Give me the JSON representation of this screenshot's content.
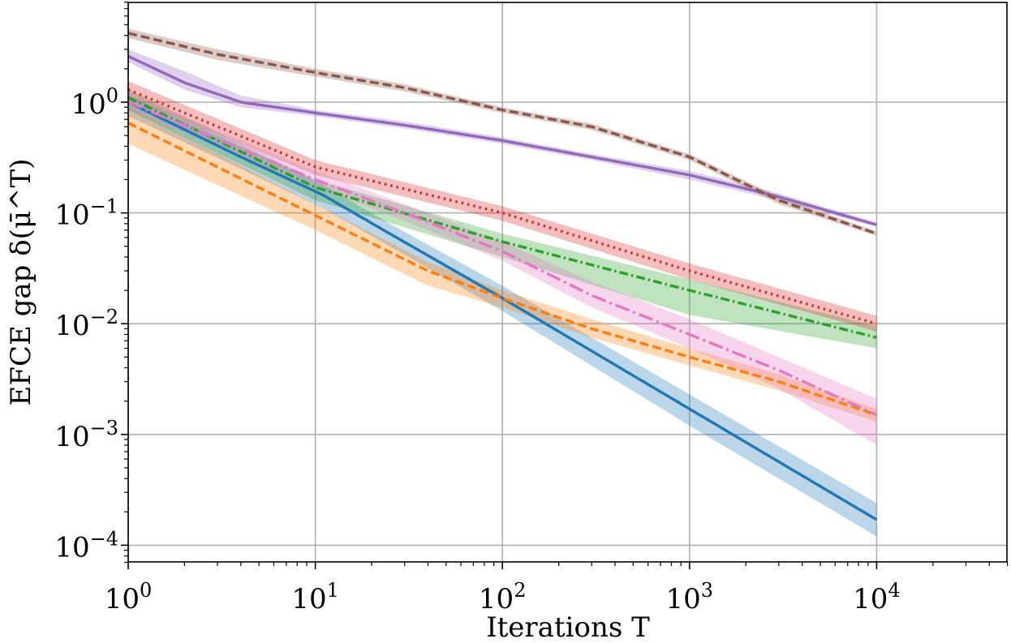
{
  "chart_data": {
    "type": "line",
    "title": "",
    "xlabel": "Iterations T",
    "ylabel": "EFCE gap δ(μ̄^T)",
    "xscale": "log",
    "yscale": "log",
    "xlim": [
      1,
      50000
    ],
    "ylim": [
      7e-05,
      8
    ],
    "grid": true,
    "legend": "none",
    "x_ticks": [
      {
        "value": 1,
        "base": "10",
        "exp": "0"
      },
      {
        "value": 10,
        "base": "10",
        "exp": "1"
      },
      {
        "value": 100,
        "base": "10",
        "exp": "2"
      },
      {
        "value": 1000,
        "base": "10",
        "exp": "3"
      },
      {
        "value": 10000,
        "base": "10",
        "exp": "4"
      }
    ],
    "y_ticks": [
      {
        "value": 0.0001,
        "base": "10",
        "exp": "−4"
      },
      {
        "value": 0.001,
        "base": "10",
        "exp": "−3"
      },
      {
        "value": 0.01,
        "base": "10",
        "exp": "−2"
      },
      {
        "value": 0.1,
        "base": "10",
        "exp": "−1"
      },
      {
        "value": 1,
        "base": "10",
        "exp": "0"
      }
    ],
    "series": [
      {
        "name": "blue-solid",
        "color": "#1f77b4",
        "dash": "solid",
        "x": [
          1,
          4,
          11,
          25,
          100,
          1000,
          10000
        ],
        "y": [
          1.0,
          0.32,
          0.145,
          0.065,
          0.017,
          0.0017,
          0.00017
        ],
        "band_lower": [
          0.75,
          0.25,
          0.11,
          0.05,
          0.013,
          0.0012,
          0.00012
        ],
        "band_upper": [
          1.15,
          0.4,
          0.18,
          0.08,
          0.022,
          0.0023,
          0.00024
        ]
      },
      {
        "name": "orange-dashed",
        "color": "#ff7f0e",
        "dash": "dashed",
        "x": [
          1,
          10,
          40,
          100,
          300,
          1000,
          3000,
          10000
        ],
        "y": [
          0.65,
          0.095,
          0.03,
          0.017,
          0.009,
          0.005,
          0.003,
          0.0015
        ],
        "band_lower": [
          0.42,
          0.07,
          0.022,
          0.014,
          0.0075,
          0.0042,
          0.0025,
          0.0013
        ],
        "band_upper": [
          0.9,
          0.12,
          0.036,
          0.02,
          0.011,
          0.006,
          0.0035,
          0.0017
        ]
      },
      {
        "name": "green-dashdot",
        "color": "#2ca02c",
        "dash": "dashdot",
        "x": [
          1,
          10,
          100,
          1000,
          10000
        ],
        "y": [
          1.1,
          0.17,
          0.055,
          0.02,
          0.0075
        ],
        "band_lower": [
          0.85,
          0.13,
          0.04,
          0.012,
          0.006
        ],
        "band_upper": [
          1.3,
          0.2,
          0.065,
          0.025,
          0.0095
        ]
      },
      {
        "name": "red-dotted",
        "color": "#d62728",
        "dash": "dotted",
        "x": [
          1,
          10,
          100,
          1000,
          10000
        ],
        "y": [
          1.3,
          0.26,
          0.1,
          0.03,
          0.01
        ],
        "band_lower": [
          1.1,
          0.22,
          0.085,
          0.025,
          0.0085
        ],
        "band_upper": [
          1.55,
          0.3,
          0.115,
          0.035,
          0.0118
        ]
      },
      {
        "name": "purple-solid",
        "color": "#9467bd",
        "dash": "solid",
        "x": [
          1,
          2,
          4,
          10,
          30,
          100,
          300,
          1000,
          3000,
          10000
        ],
        "y": [
          2.6,
          1.5,
          1.0,
          0.8,
          0.62,
          0.45,
          0.32,
          0.22,
          0.14,
          0.078
        ],
        "band_lower": [
          2.3,
          1.3,
          0.9,
          0.75,
          0.58,
          0.42,
          0.3,
          0.2,
          0.13,
          0.075
        ],
        "band_upper": [
          3.0,
          1.9,
          1.15,
          0.85,
          0.67,
          0.48,
          0.34,
          0.24,
          0.15,
          0.082
        ]
      },
      {
        "name": "brown-dashed",
        "color": "#8c564b",
        "dash": "dashed",
        "x": [
          1,
          3,
          10,
          30,
          100,
          300,
          1000,
          3000,
          10000
        ],
        "y": [
          4.2,
          2.7,
          1.85,
          1.35,
          0.85,
          0.6,
          0.32,
          0.13,
          0.065
        ],
        "band_lower": [
          3.8,
          2.4,
          1.7,
          1.25,
          0.8,
          0.56,
          0.3,
          0.12,
          0.062
        ],
        "band_upper": [
          4.6,
          3.0,
          2.0,
          1.45,
          0.9,
          0.64,
          0.34,
          0.14,
          0.068
        ]
      },
      {
        "name": "pink-dashdot",
        "color": "#e377c2",
        "dash": "longdashdot",
        "x": [
          1,
          10,
          30,
          100,
          300,
          1000,
          3000,
          10000
        ],
        "y": [
          1.0,
          0.2,
          0.1,
          0.045,
          0.018,
          0.008,
          0.0038,
          0.0015
        ],
        "band_lower": [
          0.85,
          0.17,
          0.085,
          0.037,
          0.014,
          0.006,
          0.0026,
          0.0008
        ],
        "band_upper": [
          1.2,
          0.24,
          0.12,
          0.055,
          0.024,
          0.011,
          0.005,
          0.0021
        ]
      }
    ]
  }
}
